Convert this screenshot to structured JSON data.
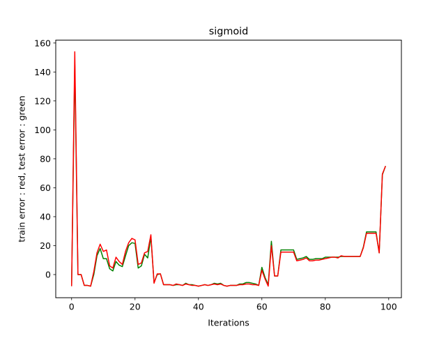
{
  "chart_data": {
    "type": "line",
    "title": "sigmoid",
    "xlabel": "Iterations",
    "ylabel": "train error : red, test error : green",
    "xlim": [
      -5,
      104
    ],
    "ylim": [
      -16,
      162
    ],
    "xticks": [
      0,
      20,
      40,
      60,
      80,
      100
    ],
    "yticks": [
      0,
      20,
      40,
      60,
      80,
      100,
      120,
      140,
      160
    ],
    "grid": false,
    "legend": "none",
    "x": [
      0,
      1,
      2,
      3,
      4,
      5,
      6,
      7,
      8,
      9,
      10,
      11,
      12,
      13,
      14,
      15,
      16,
      17,
      18,
      19,
      20,
      21,
      22,
      23,
      24,
      25,
      26,
      27,
      28,
      29,
      30,
      31,
      32,
      33,
      34,
      35,
      36,
      37,
      38,
      39,
      40,
      41,
      42,
      43,
      44,
      45,
      46,
      47,
      48,
      49,
      50,
      51,
      52,
      53,
      54,
      55,
      56,
      57,
      58,
      59,
      60,
      61,
      62,
      63,
      64,
      65,
      66,
      67,
      68,
      69,
      70,
      71,
      72,
      73,
      74,
      75,
      76,
      77,
      78,
      79,
      80,
      81,
      82,
      83,
      84,
      85,
      86,
      87,
      88,
      89,
      90,
      91,
      92,
      93,
      94,
      95,
      96,
      97,
      98,
      99
    ],
    "series": [
      {
        "color": "#008000",
        "values": [
          -8,
          145,
          0,
          0,
          -7.5,
          -7.5,
          -8,
          0,
          13,
          18,
          11,
          11,
          4,
          2.5,
          9,
          6.5,
          5.5,
          13,
          20,
          22,
          21.5,
          4.5,
          6,
          14,
          11.5,
          26,
          -5.5,
          0,
          0.5,
          -7,
          -7,
          -7,
          -7.5,
          -7,
          -7,
          -7.5,
          -6,
          -7,
          -7,
          -7.5,
          -8,
          -7.5,
          -7,
          -7.5,
          -7,
          -6,
          -6.5,
          -6,
          -7.5,
          -8,
          -7.5,
          -7.5,
          -7.5,
          -6.5,
          -6.5,
          -5.5,
          -5.5,
          -6,
          -6.5,
          -7.5,
          5,
          -2,
          -7,
          23,
          -1,
          -1,
          17,
          17,
          17,
          17,
          17,
          10.5,
          11,
          11.5,
          12.5,
          10.5,
          10.5,
          11,
          11,
          11,
          12,
          12,
          12,
          12,
          12,
          12.5,
          12.5,
          12.5,
          12.5,
          12.5,
          12.5,
          12.5,
          19,
          29.5,
          29.5,
          29.5,
          29.5,
          15,
          69,
          75
        ]
      },
      {
        "color": "#ff0000",
        "values": [
          -8,
          154,
          0,
          0,
          -7.5,
          -7.5,
          -8,
          2,
          15,
          21,
          16,
          17,
          6,
          4.5,
          12,
          9,
          7,
          16,
          22,
          25,
          24,
          7,
          8,
          15,
          16,
          27.5,
          -6,
          0.5,
          0.5,
          -7,
          -7,
          -7,
          -7.5,
          -6.5,
          -7,
          -7.5,
          -6.5,
          -7,
          -7.5,
          -7.5,
          -8,
          -7.5,
          -7,
          -7.5,
          -7,
          -6.5,
          -7,
          -6.5,
          -7.5,
          -8,
          -7.5,
          -7.5,
          -7.5,
          -7,
          -7,
          -6.5,
          -6.5,
          -7,
          -7,
          -7.5,
          3,
          -3,
          -8,
          20,
          -1,
          -1,
          15.5,
          15.5,
          15.5,
          15.5,
          15.5,
          9.5,
          10,
          10.5,
          11.5,
          9.5,
          9.5,
          10,
          10,
          10.5,
          11,
          11.5,
          12,
          12,
          11.5,
          13,
          12.5,
          12.5,
          12.5,
          12.5,
          12.5,
          12.5,
          18.5,
          28.5,
          28.5,
          28.5,
          28.5,
          15,
          69.5,
          75
        ]
      }
    ]
  }
}
